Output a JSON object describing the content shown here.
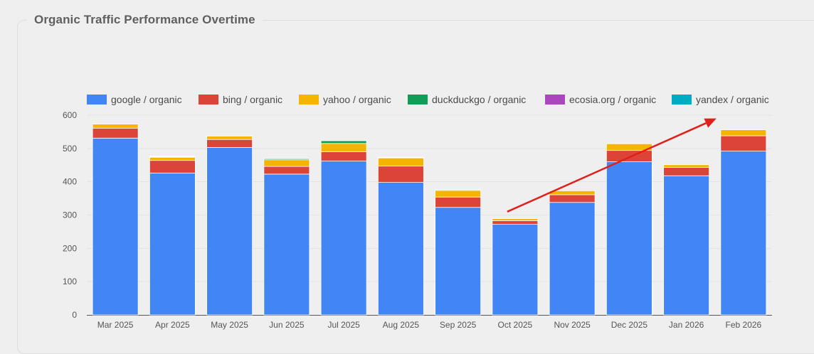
{
  "panel": {
    "title": "Organic Traffic Performance Overtime"
  },
  "chart_data": {
    "type": "bar",
    "stacked": true,
    "title": "Organic Traffic Performance Overtime",
    "xlabel": "",
    "ylabel": "",
    "ylim": [
      0,
      600
    ],
    "yticks": [
      0,
      100,
      200,
      300,
      400,
      500,
      600
    ],
    "grid": true,
    "legend_position": "top",
    "categories": [
      "Mar 2025",
      "Apr 2025",
      "May 2025",
      "Jun 2025",
      "Jul 2025",
      "Aug 2025",
      "Sep 2025",
      "Oct 2025",
      "Nov 2025",
      "Dec 2025",
      "Jan 2026",
      "Feb 2026"
    ],
    "series": [
      {
        "name": "google / organic",
        "color": "#4285f4",
        "values": [
          531,
          426,
          503,
          423,
          462,
          398,
          323,
          272,
          338,
          460,
          418,
          492
        ]
      },
      {
        "name": "bing / organic",
        "color": "#db4437",
        "values": [
          30,
          38,
          24,
          23,
          28,
          49,
          31,
          11,
          23,
          34,
          25,
          46
        ]
      },
      {
        "name": "yahoo / organic",
        "color": "#f4b400",
        "values": [
          12,
          10,
          10,
          20,
          25,
          25,
          20,
          6,
          12,
          20,
          8,
          18
        ]
      },
      {
        "name": "duckduckgo / organic",
        "color": "#0f9d58",
        "values": [
          0,
          1,
          0,
          3,
          8,
          1,
          2,
          0,
          2,
          0,
          0,
          0
        ]
      },
      {
        "name": "ecosia.org / organic",
        "color": "#ab47bc",
        "values": [
          0,
          1,
          0,
          0,
          0,
          0,
          0,
          0,
          0,
          0,
          0,
          0
        ]
      },
      {
        "name": "yandex / organic",
        "color": "#00acc1",
        "values": [
          0,
          1,
          0,
          0,
          0,
          1,
          0,
          0,
          0,
          0,
          0,
          0
        ]
      }
    ],
    "annotations": [
      {
        "type": "arrow",
        "color": "#e0201b",
        "from": {
          "category": "Oct 2025",
          "y": 310
        },
        "to": {
          "category": "Feb 2026",
          "y": 590
        }
      }
    ]
  }
}
